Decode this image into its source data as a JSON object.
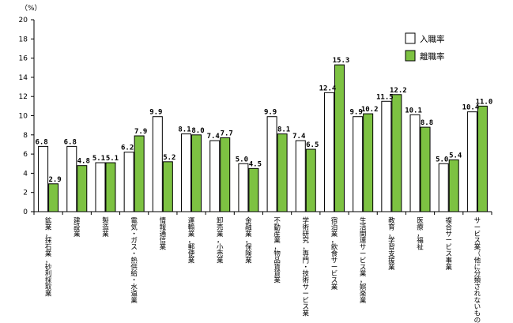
{
  "chart_data": {
    "type": "bar",
    "unit_label": "（%）",
    "ylim": [
      0,
      20
    ],
    "yticks": [
      "0",
      "2",
      "4",
      "6",
      "8",
      "10",
      "12",
      "14",
      "16",
      "18",
      "20"
    ],
    "categories": [
      "鉱業，採石業，砂利採取業",
      "建設業",
      "製造業",
      "電気・ガス・熱供給・水道業",
      "情報通信業",
      "運輸業，郵便業",
      "卸売業，小売業",
      "金融業，保険業",
      "不動産業，物品賃貸業",
      "学術研究，専門・技術サービス業",
      "宿泊業，飲食サービス業",
      "生活関連サービス業，娯楽業",
      "教育，学習支援業",
      "医療，福祉",
      "複合サービス事業",
      "サービス業（他に分類されないもの）"
    ],
    "series": [
      {
        "name": "入職率",
        "color": "#ffffff",
        "values": [
          6.8,
          6.8,
          5.1,
          6.2,
          9.9,
          8.1,
          7.4,
          5.0,
          9.9,
          7.4,
          12.4,
          9.9,
          11.5,
          10.1,
          5.0,
          10.4
        ],
        "labels": [
          "6.8",
          "6.8",
          "5.1",
          "6.2",
          "9.9",
          "8.1",
          "7.4",
          "5.0",
          "9.9",
          "7.4",
          "12.4",
          "9.9",
          "11.5",
          "10.1",
          "5.0",
          "10.4"
        ]
      },
      {
        "name": "離職率",
        "color": "#7dc242",
        "values": [
          2.9,
          4.8,
          5.1,
          7.9,
          5.2,
          8.0,
          7.7,
          4.5,
          8.1,
          6.5,
          15.3,
          10.2,
          12.2,
          8.8,
          5.4,
          11.0
        ],
        "labels": [
          "2.9",
          "4.8",
          "5.1",
          "7.9",
          "5.2",
          "8.0",
          "7.7",
          "4.5",
          "8.1",
          "6.5",
          "15.3",
          "10.2",
          "12.2",
          "8.8",
          "5.4",
          "11.0"
        ]
      }
    ],
    "legend_position": "top-right",
    "grid": false
  }
}
